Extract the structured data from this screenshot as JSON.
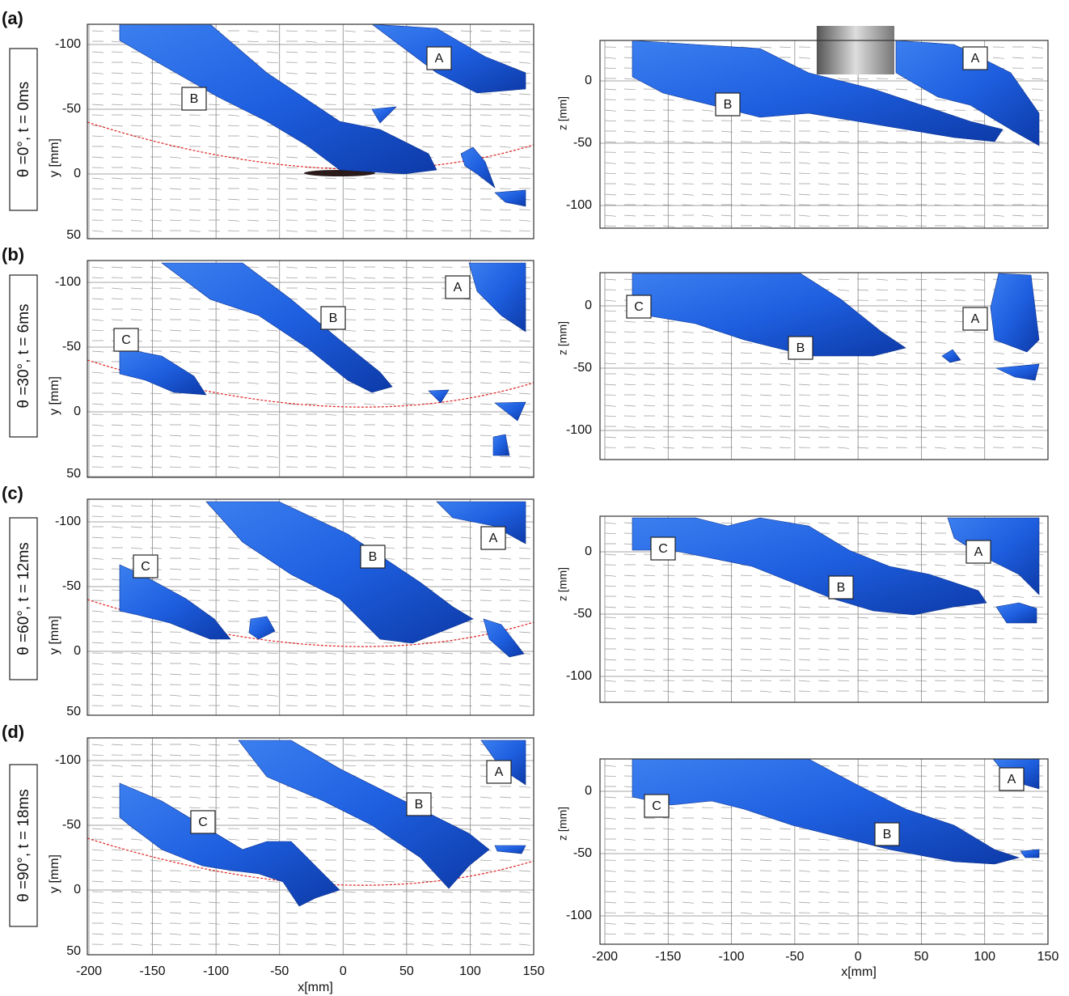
{
  "panels": [
    {
      "letter": "(a)",
      "condition": "θ =0°, t = 0ms",
      "top_view_labels": [
        "A",
        "B"
      ],
      "side_view_labels": [
        "A",
        "B"
      ]
    },
    {
      "letter": "(b)",
      "condition": "θ =30°, t = 6ms",
      "top_view_labels": [
        "A",
        "B",
        "C"
      ],
      "side_view_labels": [
        "C",
        "A",
        "B"
      ]
    },
    {
      "letter": "(c)",
      "condition": "θ =60°, t = 12ms",
      "top_view_labels": [
        "C",
        "B",
        "A"
      ],
      "side_view_labels": [
        "C",
        "A",
        "B"
      ]
    },
    {
      "letter": "(d)",
      "condition": "θ =90°, t = 18ms",
      "top_view_labels": [
        "A",
        "B",
        "C"
      ],
      "side_view_labels": [
        "C",
        "A",
        "B"
      ]
    }
  ],
  "top_view": {
    "y_label": "y [mm]",
    "yticks": [
      -100,
      -50,
      0,
      50
    ]
  },
  "side_view": {
    "z_label": "z [mm]",
    "zticks": [
      0,
      -50,
      -100
    ]
  },
  "x_axis": {
    "label": "x[mm]",
    "xticks": [
      -200,
      -150,
      -100,
      -50,
      0,
      50,
      100,
      150
    ]
  }
}
